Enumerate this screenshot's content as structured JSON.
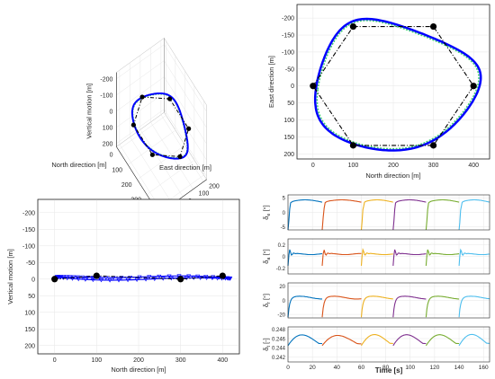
{
  "colors": {
    "path": "#0000FF",
    "reference": "#3CD070",
    "waypoint": "#000000",
    "connector": "#000000",
    "ts_blue": "#0072BD",
    "ts_orange": "#D95319",
    "ts_yellow": "#EDB120",
    "ts_purple": "#7E2F8E",
    "ts_green": "#77AC30",
    "ts_cyan": "#4DBEEE",
    "axis": "#262626",
    "grid": "#e6e6e6"
  },
  "waypoints": [
    {
      "north": 0,
      "east": 0
    },
    {
      "north": 100,
      "east": -175
    },
    {
      "north": 300,
      "east": -175
    },
    {
      "north": 400,
      "east": 0
    },
    {
      "north": 300,
      "east": 175
    },
    {
      "north": 100,
      "east": 175
    }
  ],
  "chart_data": [
    {
      "id": "panel-3d",
      "type": "line3d",
      "xlabel": "North direction [m]",
      "ylabel": "East direction [m]",
      "zlabel": "Vertical motion [m]",
      "x_ticks": [
        "0",
        "100",
        "200",
        "300",
        "400"
      ],
      "y_ticks": [
        "-200",
        "-100",
        "0",
        "100",
        "200"
      ],
      "z_ticks": [
        "-200",
        "-100",
        "0",
        "100",
        "200"
      ],
      "zlim": [
        -240,
        220
      ],
      "z_reversed": true,
      "grid": true
    },
    {
      "id": "panel-top",
      "type": "line",
      "xlabel": "North direction [m]",
      "ylabel": "East direction [m]",
      "x_ticks": [
        0,
        100,
        200,
        300,
        400
      ],
      "y_ticks": [
        -200,
        -150,
        -100,
        -50,
        0,
        50,
        100,
        150,
        200
      ],
      "xlim": [
        -40,
        440
      ],
      "ylim": [
        -240,
        215
      ],
      "y_reversed": true,
      "grid": true
    },
    {
      "id": "panel-side",
      "type": "line",
      "xlabel": "North direction [m]",
      "ylabel": "Vertical motion [m]",
      "x_ticks": [
        0,
        100,
        200,
        300,
        400
      ],
      "y_ticks": [
        -200,
        -150,
        -100,
        -50,
        0,
        50,
        100,
        150,
        200
      ],
      "xlim": [
        -40,
        440
      ],
      "ylim": [
        -240,
        225
      ],
      "y_reversed": true,
      "grid": true,
      "waypoint_heights": [
        0,
        -10,
        0,
        -10
      ]
    },
    {
      "id": "panel-controls",
      "type": "line",
      "xlabel": "Time [s]",
      "x_ticks": [
        0,
        20,
        40,
        60,
        80,
        100,
        120,
        140,
        160
      ],
      "xlim": [
        0,
        165
      ],
      "segments": [
        {
          "t0": 0,
          "t1": 28,
          "color": "#0072BD"
        },
        {
          "t0": 28,
          "t1": 60,
          "color": "#D95319"
        },
        {
          "t0": 60,
          "t1": 86,
          "color": "#EDB120"
        },
        {
          "t0": 86,
          "t1": 113,
          "color": "#7E2F8E"
        },
        {
          "t0": 113,
          "t1": 140,
          "color": "#77AC30"
        },
        {
          "t0": 140,
          "t1": 165,
          "color": "#4DBEEE"
        }
      ],
      "subplots": [
        {
          "ylabel_main": "δ",
          "ylabel_sub": "e",
          "ylabel_unit": " [°]",
          "y_ticks": [
            "-5",
            "0",
            "5"
          ],
          "ylim": [
            -6,
            6
          ]
        },
        {
          "ylabel_main": "δ",
          "ylabel_sub": "a",
          "ylabel_unit": " [°]",
          "y_ticks": [
            "-0.2",
            "0",
            "0.2"
          ],
          "ylim": [
            -0.3,
            0.3
          ]
        },
        {
          "ylabel_main": "δ",
          "ylabel_sub": "r",
          "ylabel_unit": " [°]",
          "y_ticks": [
            "-20",
            "0",
            "20"
          ],
          "ylim": [
            -25,
            25
          ]
        },
        {
          "ylabel_main": "δ",
          "ylabel_sub": "t",
          "ylabel_unit": " [-]",
          "y_ticks": [
            "0.242",
            "0.244",
            "0.246",
            "0.248"
          ],
          "ylim": [
            0.241,
            0.2485
          ]
        }
      ]
    }
  ]
}
